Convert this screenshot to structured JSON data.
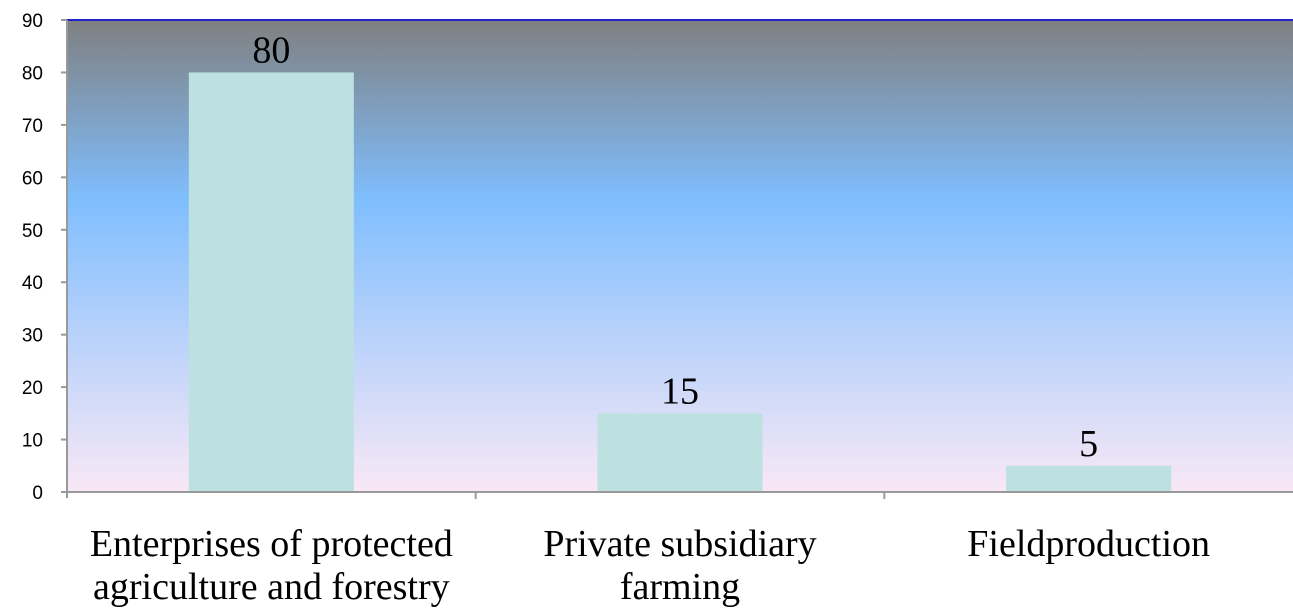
{
  "chart_data": {
    "type": "bar",
    "title": "",
    "xlabel": "",
    "ylabel": "",
    "ylim": [
      0,
      90
    ],
    "yticks": [
      0,
      10,
      20,
      30,
      40,
      50,
      60,
      70,
      80,
      90
    ],
    "grid": false,
    "legend": "none",
    "categories": [
      [
        "Enterprises of protected",
        "agriculture and forestry"
      ],
      [
        "Private subsidiary",
        "farming"
      ],
      [
        "Fieldproduction"
      ]
    ],
    "values": [
      80,
      15,
      5
    ],
    "data_labels": [
      "80",
      "15",
      "5"
    ]
  },
  "colors": {
    "bar": "#bde0e1",
    "plot_top": "#7f8080",
    "plot_middle": "#7fbefe",
    "plot_bottom": "#f9e8f6",
    "top_border": "#2222cc",
    "axis": "#999999"
  }
}
